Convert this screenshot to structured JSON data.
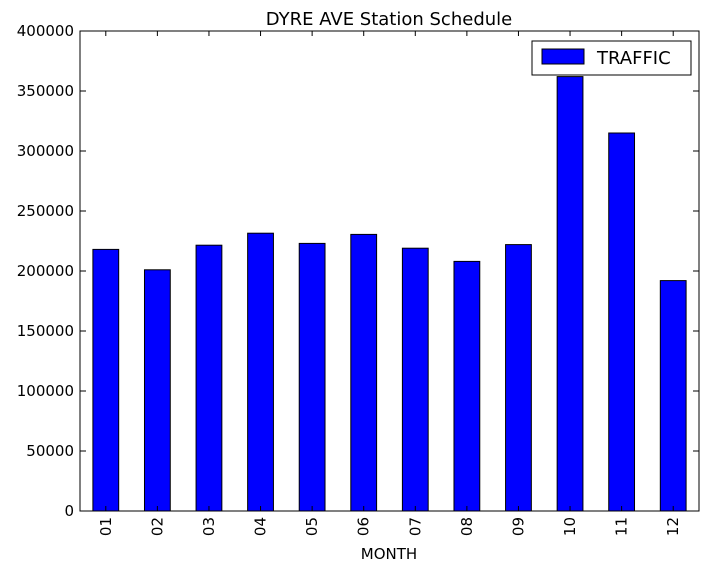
{
  "chart_data": {
    "type": "bar",
    "title": "DYRE AVE Station Schedule",
    "xlabel": "MONTH",
    "ylabel": "",
    "categories": [
      "01",
      "02",
      "03",
      "04",
      "05",
      "06",
      "07",
      "08",
      "09",
      "10",
      "11",
      "12"
    ],
    "series": [
      {
        "name": "TRAFFIC",
        "values": [
          218000,
          201000,
          221500,
          231500,
          223000,
          230500,
          219000,
          208000,
          222000,
          362000,
          315000,
          192000
        ]
      }
    ],
    "ylim": [
      0,
      400000
    ],
    "yticks": [
      "0",
      "50000",
      "100000",
      "150000",
      "200000",
      "250000",
      "300000",
      "350000",
      "400000"
    ],
    "ytick_values": [
      0,
      50000,
      100000,
      150000,
      200000,
      250000,
      300000,
      350000,
      400000
    ],
    "grid": false,
    "legend_position": "top-right",
    "colors": {
      "bar_fill": "#0000ff",
      "bar_stroke": "#000000",
      "axis": "#000000",
      "background": "#ffffff"
    }
  }
}
